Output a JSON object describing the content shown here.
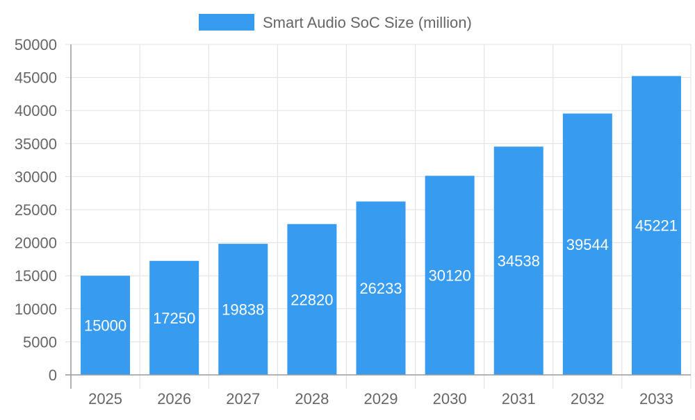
{
  "chart_data": {
    "type": "bar",
    "title": "",
    "xlabel": "",
    "ylabel": "",
    "categories": [
      "2025",
      "2026",
      "2027",
      "2028",
      "2029",
      "2030",
      "2031",
      "2032",
      "2033"
    ],
    "series": [
      {
        "name": "Smart Audio SoC Size (million)",
        "values": [
          15000,
          17250,
          19838,
          22820,
          26233,
          30120,
          34538,
          39544,
          45221
        ],
        "color": "#379cf0"
      }
    ],
    "ylim": [
      0,
      50000
    ],
    "yticks": [
      0,
      5000,
      10000,
      15000,
      20000,
      25000,
      30000,
      35000,
      40000,
      45000,
      50000
    ],
    "grid": true,
    "legend_position": "top",
    "data_labels": true,
    "data_label_color": "#ffffff",
    "text_color": "#666666",
    "grid_color": "#e0e0e0"
  }
}
